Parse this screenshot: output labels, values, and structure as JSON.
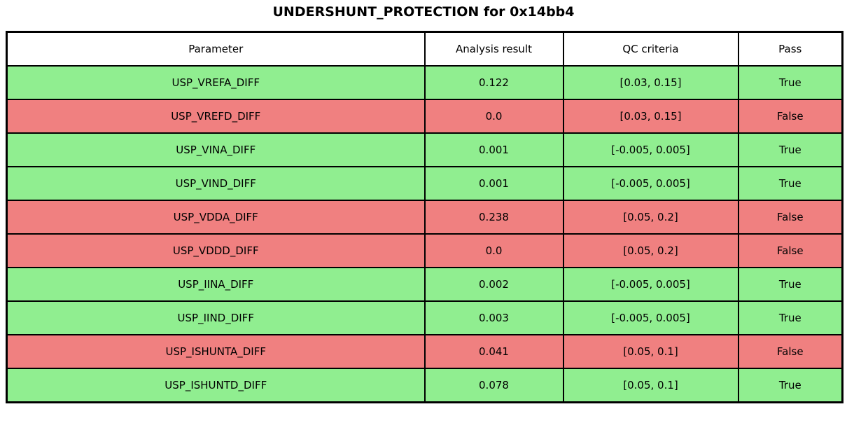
{
  "title": "UNDERSHUNT_PROTECTION for 0x14bb4",
  "colors": {
    "pass": "#90EE90",
    "fail": "#F08080",
    "border": "#000000",
    "header_bg": "#FFFFFF"
  },
  "table": {
    "columns": [
      "Parameter",
      "Analysis result",
      "QC criteria",
      "Pass"
    ],
    "rows": [
      {
        "parameter": "USP_VREFA_DIFF",
        "result": "0.122",
        "criteria": "[0.03, 0.15]",
        "pass": "True",
        "status": "pass"
      },
      {
        "parameter": "USP_VREFD_DIFF",
        "result": "0.0",
        "criteria": "[0.03, 0.15]",
        "pass": "False",
        "status": "fail"
      },
      {
        "parameter": "USP_VINA_DIFF",
        "result": "0.001",
        "criteria": "[-0.005, 0.005]",
        "pass": "True",
        "status": "pass"
      },
      {
        "parameter": "USP_VIND_DIFF",
        "result": "0.001",
        "criteria": "[-0.005, 0.005]",
        "pass": "True",
        "status": "pass"
      },
      {
        "parameter": "USP_VDDA_DIFF",
        "result": "0.238",
        "criteria": "[0.05, 0.2]",
        "pass": "False",
        "status": "fail"
      },
      {
        "parameter": "USP_VDDD_DIFF",
        "result": "0.0",
        "criteria": "[0.05, 0.2]",
        "pass": "False",
        "status": "fail"
      },
      {
        "parameter": "USP_IINA_DIFF",
        "result": "0.002",
        "criteria": "[-0.005, 0.005]",
        "pass": "True",
        "status": "pass"
      },
      {
        "parameter": "USP_IIND_DIFF",
        "result": "0.003",
        "criteria": "[-0.005, 0.005]",
        "pass": "True",
        "status": "pass"
      },
      {
        "parameter": "USP_ISHUNTA_DIFF",
        "result": "0.041",
        "criteria": "[0.05, 0.1]",
        "pass": "False",
        "status": "fail"
      },
      {
        "parameter": "USP_ISHUNTD_DIFF",
        "result": "0.078",
        "criteria": "[0.05, 0.1]",
        "pass": "True",
        "status": "pass"
      }
    ]
  },
  "chart_data": {
    "type": "table",
    "title": "UNDERSHUNT_PROTECTION for 0x14bb4",
    "columns": [
      "Parameter",
      "Analysis result",
      "QC criteria",
      "Pass"
    ],
    "rows": [
      [
        "USP_VREFA_DIFF",
        0.122,
        "[0.03, 0.15]",
        true
      ],
      [
        "USP_VREFD_DIFF",
        0.0,
        "[0.03, 0.15]",
        false
      ],
      [
        "USP_VINA_DIFF",
        0.001,
        "[-0.005, 0.005]",
        true
      ],
      [
        "USP_VIND_DIFF",
        0.001,
        "[-0.005, 0.005]",
        true
      ],
      [
        "USP_VDDA_DIFF",
        0.238,
        "[0.05, 0.2]",
        false
      ],
      [
        "USP_VDDD_DIFF",
        0.0,
        "[0.05, 0.2]",
        false
      ],
      [
        "USP_IINA_DIFF",
        0.002,
        "[-0.005, 0.005]",
        true
      ],
      [
        "USP_IIND_DIFF",
        0.003,
        "[-0.005, 0.005]",
        true
      ],
      [
        "USP_ISHUNTA_DIFF",
        0.041,
        "[0.05, 0.1]",
        false
      ],
      [
        "USP_ISHUNTD_DIFF",
        0.078,
        "[0.05, 0.1]",
        true
      ]
    ],
    "row_color_legend": {
      "pass": "#90EE90",
      "fail": "#F08080"
    }
  }
}
